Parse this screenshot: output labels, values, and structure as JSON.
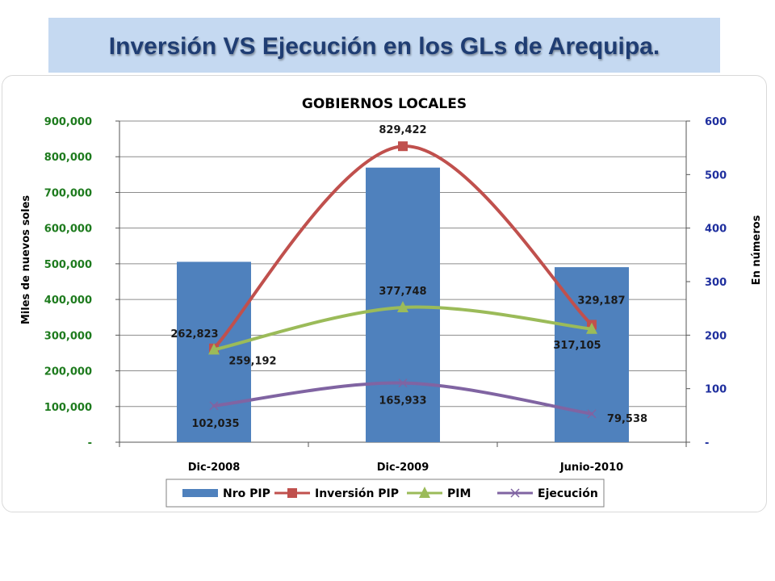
{
  "page_title": "Inversión  VS  Ejecución en los GLs   de  Arequipa.",
  "colors": {
    "banner": "#c5d9f1",
    "title": "#1f3d73",
    "left_axis": "#1e7b1e",
    "right_axis": "#1f2f9e",
    "bars": "#4f81bd",
    "inversion": "#c0504d",
    "pim": "#9bbb59",
    "ejecucion": "#8064a2"
  },
  "chart_data": {
    "type": "bar",
    "title": "GOBIERNOS LOCALES",
    "categories": [
      "Dic-2008",
      "Dic-2009",
      "Junio-2010"
    ],
    "ylabel": "Miles de nuevos soles",
    "y2label": "En números",
    "ylim": [
      0,
      900000
    ],
    "y2lim": [
      0,
      600
    ],
    "y_ticks": [
      "-",
      "100,000",
      "200,000",
      "300,000",
      "400,000",
      "500,000",
      "600,000",
      "700,000",
      "800,000",
      "900,000"
    ],
    "y2_ticks": [
      "-",
      "100",
      "200",
      "300",
      "400",
      "500",
      "600"
    ],
    "legend_position": "bottom",
    "grid": true,
    "series": [
      {
        "name": "Nro PIP",
        "type": "bar",
        "axis": "right",
        "values": [
          337,
          513,
          327
        ],
        "labels": [
          "",
          "",
          ""
        ]
      },
      {
        "name": "Inversión PIP",
        "type": "line",
        "axis": "left",
        "marker": "square",
        "values": [
          262823,
          829422,
          329187
        ],
        "labels": [
          "262,823",
          "829,422",
          "329,187"
        ]
      },
      {
        "name": "PIM",
        "type": "line",
        "axis": "left",
        "marker": "triangle",
        "values": [
          259192,
          377748,
          317105
        ],
        "labels": [
          "259,192",
          "377,748",
          "317,105"
        ]
      },
      {
        "name": "Ejecución",
        "type": "line",
        "axis": "left",
        "marker": "x",
        "values": [
          102035,
          165933,
          79538
        ],
        "labels": [
          "102,035",
          "165,933",
          "79,538"
        ]
      }
    ]
  }
}
